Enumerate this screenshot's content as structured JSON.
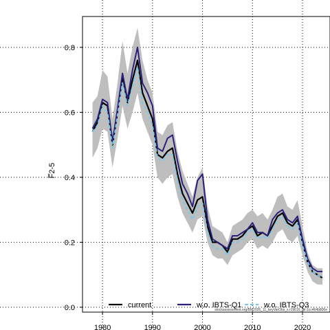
{
  "chart_data": {
    "type": "line",
    "ylabel": "F̅2-5",
    "xlim": [
      1976,
      2025.5
    ],
    "ylim": [
      -0.015,
      0.895
    ],
    "xticks": [
      1980,
      1990,
      2000,
      2010,
      2020
    ],
    "yticks": [
      0.0,
      0.2,
      0.4,
      0.6,
      0.8
    ],
    "grid": true,
    "legend_position": "bottom",
    "x": [
      1978,
      1979,
      1980,
      1981,
      1982,
      1983,
      1984,
      1985,
      1986,
      1987,
      1988,
      1989,
      1990,
      1991,
      1992,
      1993,
      1994,
      1995,
      1996,
      1997,
      1998,
      1999,
      2000,
      2001,
      2002,
      2003,
      2004,
      2005,
      2006,
      2007,
      2008,
      2009,
      2010,
      2011,
      2012,
      2013,
      2014,
      2015,
      2016,
      2017,
      2018,
      2019,
      2020,
      2021,
      2022,
      2023,
      2024
    ],
    "band": {
      "color": "#bebebe",
      "lower": [
        0.46,
        0.49,
        0.55,
        0.54,
        0.43,
        0.52,
        0.62,
        0.55,
        0.6,
        0.66,
        0.58,
        0.54,
        0.5,
        0.4,
        0.38,
        0.4,
        0.41,
        0.34,
        0.29,
        0.26,
        0.23,
        0.27,
        0.28,
        0.2,
        0.16,
        0.15,
        0.15,
        0.13,
        0.16,
        0.17,
        0.18,
        0.2,
        0.21,
        0.18,
        0.19,
        0.18,
        0.2,
        0.23,
        0.24,
        0.21,
        0.2,
        0.22,
        0.16,
        0.11,
        0.08,
        0.07,
        0.07
      ],
      "upper": [
        0.63,
        0.65,
        0.73,
        0.71,
        0.58,
        0.69,
        0.82,
        0.72,
        0.8,
        0.86,
        0.76,
        0.7,
        0.66,
        0.54,
        0.53,
        0.56,
        0.57,
        0.48,
        0.42,
        0.38,
        0.34,
        0.4,
        0.43,
        0.31,
        0.25,
        0.24,
        0.23,
        0.2,
        0.25,
        0.26,
        0.27,
        0.29,
        0.3,
        0.28,
        0.29,
        0.27,
        0.3,
        0.34,
        0.35,
        0.31,
        0.3,
        0.33,
        0.25,
        0.17,
        0.13,
        0.12,
        0.12
      ]
    },
    "series": [
      {
        "name": "current",
        "color": "#000000",
        "dash": "solid",
        "values": [
          0.54,
          0.57,
          0.63,
          0.62,
          0.5,
          0.6,
          0.71,
          0.63,
          0.7,
          0.76,
          0.66,
          0.62,
          0.58,
          0.47,
          0.46,
          0.48,
          0.49,
          0.41,
          0.35,
          0.32,
          0.29,
          0.33,
          0.34,
          0.25,
          0.2,
          0.2,
          0.19,
          0.17,
          0.21,
          0.21,
          0.22,
          0.24,
          0.25,
          0.22,
          0.23,
          0.22,
          0.25,
          0.28,
          0.29,
          0.26,
          0.25,
          0.27,
          0.2,
          0.14,
          0.11,
          0.1,
          0.09
        ]
      },
      {
        "name": "w.o. IBTS-Q1",
        "color": "#2a1f7a",
        "dash": "solid",
        "values": [
          0.55,
          0.58,
          0.64,
          0.63,
          0.51,
          0.61,
          0.72,
          0.64,
          0.73,
          0.8,
          0.69,
          0.66,
          0.62,
          0.49,
          0.48,
          0.52,
          0.53,
          0.45,
          0.38,
          0.35,
          0.31,
          0.39,
          0.41,
          0.27,
          0.21,
          0.2,
          0.19,
          0.18,
          0.22,
          0.22,
          0.23,
          0.24,
          0.26,
          0.23,
          0.23,
          0.22,
          0.27,
          0.29,
          0.3,
          0.27,
          0.26,
          0.28,
          0.21,
          0.15,
          0.12,
          0.11,
          0.11
        ]
      },
      {
        "name": "w.o. IBTS-Q3",
        "color": "#7ec8e3",
        "dash": "dashed",
        "values": [
          0.54,
          0.56,
          0.62,
          0.6,
          0.49,
          0.59,
          0.69,
          0.62,
          0.68,
          0.74,
          0.63,
          0.6,
          0.56,
          0.46,
          0.45,
          0.47,
          0.47,
          0.39,
          0.33,
          0.3,
          0.27,
          0.31,
          0.32,
          0.23,
          0.19,
          0.18,
          0.18,
          0.16,
          0.2,
          0.2,
          0.21,
          0.23,
          0.24,
          0.21,
          0.22,
          0.21,
          0.24,
          0.27,
          0.28,
          0.25,
          0.24,
          0.26,
          0.19,
          0.14,
          0.11,
          0.1,
          0.09
        ]
      }
    ],
    "footnote": "stockassessment.org/BM2026_11_keyVarObs_s.r19616_git:1cc464b806e"
  }
}
